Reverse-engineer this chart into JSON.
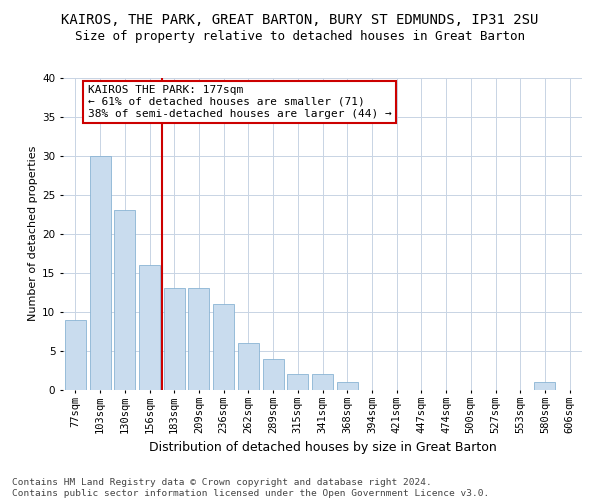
{
  "title": "KAIROS, THE PARK, GREAT BARTON, BURY ST EDMUNDS, IP31 2SU",
  "subtitle": "Size of property relative to detached houses in Great Barton",
  "xlabel": "Distribution of detached houses by size in Great Barton",
  "ylabel": "Number of detached properties",
  "footnote": "Contains HM Land Registry data © Crown copyright and database right 2024.\nContains public sector information licensed under the Open Government Licence v3.0.",
  "categories": [
    "77sqm",
    "103sqm",
    "130sqm",
    "156sqm",
    "183sqm",
    "209sqm",
    "236sqm",
    "262sqm",
    "289sqm",
    "315sqm",
    "341sqm",
    "368sqm",
    "394sqm",
    "421sqm",
    "447sqm",
    "474sqm",
    "500sqm",
    "527sqm",
    "553sqm",
    "580sqm",
    "606sqm"
  ],
  "values": [
    9,
    30,
    23,
    16,
    13,
    13,
    11,
    6,
    4,
    2,
    2,
    1,
    0,
    0,
    0,
    0,
    0,
    0,
    0,
    1,
    0
  ],
  "bar_color": "#c9dcee",
  "bar_edge_color": "#8ab4d4",
  "vline_index": 3,
  "vline_color": "#cc0000",
  "annotation_line1": "KAIROS THE PARK: 177sqm",
  "annotation_line2": "← 61% of detached houses are smaller (71)",
  "annotation_line3": "38% of semi-detached houses are larger (44) →",
  "annotation_box_color": "#cc0000",
  "ylim": [
    0,
    40
  ],
  "yticks": [
    0,
    5,
    10,
    15,
    20,
    25,
    30,
    35,
    40
  ],
  "title_fontsize": 10,
  "subtitle_fontsize": 9,
  "xlabel_fontsize": 9,
  "ylabel_fontsize": 8,
  "tick_fontsize": 7.5,
  "annotation_fontsize": 8,
  "footnote_fontsize": 6.8,
  "background_color": "#ffffff",
  "grid_color": "#c8d4e4"
}
